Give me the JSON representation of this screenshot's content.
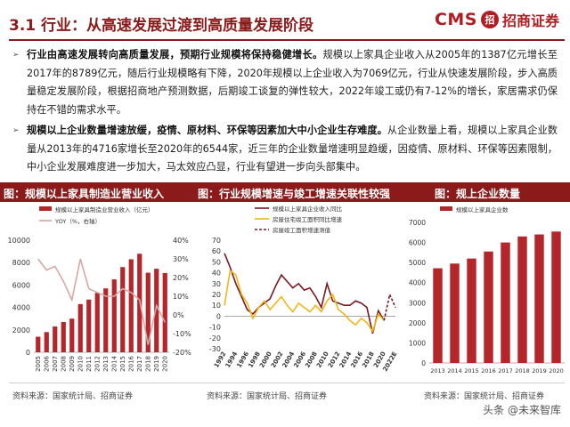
{
  "header": {
    "title": "3.1 行业：从高速发展过渡到高质量发展阶段",
    "logo_cms": "CMS",
    "logo_seal": "招",
    "logo_cn": "招商证券"
  },
  "bullets": [
    {
      "marker": "➢",
      "bold": "行业由高速发展转向高质量发展，预期行业规模将保持稳健增长。",
      "text": "规模以上家具企业收入从2005年的1387亿元增长至2017年的8789亿元，随后行业规模略有下降，2020年规模以上企业收入为7069亿元，行业从快速发展阶段，步入高质量稳定发展阶段，根据招商地产预测数据，后期竣工谈复的弹性较大，2022年竣工或仍有7-12%的增长，家居需求仍保持在不错的需求水平。"
    },
    {
      "marker": "➢",
      "bold": "规模以上企业数量增速放缓，疫情、原材料、环保等因素加大中小企业生存难度。",
      "text": "从企业数量上看，规模以上家具企业数量从2013年的4716家增长至2020年的6544家，近三年的企业数量增速明显趋缓，因疫情、原材料、环保等因素限制，中小企业发展难度进一步加大，马太效应凸显，行业有望进一步向头部集中。"
    }
  ],
  "figure_titles": [
    "图：规模以上家具制造业营业收入",
    "图：行业规模增速与竣工增速关联性较强",
    "图：规上企业数量"
  ],
  "sources": [
    "资料来源：国家统计局、招商证券",
    "资料来源：国家统计局、招商证券",
    "资料来源：国家统计局、招商证券"
  ],
  "watermark": "头条 @未来智库",
  "colors": {
    "brand": "#8b1a1a",
    "bar": "#b5262b",
    "line_dark": "#7a1820",
    "line_yellow": "#f2b619"
  },
  "chart_data": [
    {
      "type": "bar",
      "title": "图：规模以上家具制造业营业收入",
      "categories": [
        "2005",
        "2006",
        "2007",
        "2008",
        "2009",
        "2010",
        "2011",
        "2012",
        "2013",
        "2014",
        "2015",
        "2016",
        "2017",
        "2018",
        "2019",
        "2020"
      ],
      "series": [
        {
          "name": "规模以上家具制造业营业收入（亿元）",
          "type": "bar",
          "axis": "left",
          "values": [
            1387,
            1800,
            2300,
            2700,
            3000,
            4300,
            4700,
            5300,
            5700,
            6500,
            7600,
            8300,
            8789,
            7100,
            7450,
            7069
          ]
        },
        {
          "name": "YOY（%，右轴）",
          "type": "line",
          "axis": "right",
          "values": [
            30,
            24,
            26,
            18,
            8,
            30,
            14,
            12,
            10,
            10,
            14,
            12,
            8,
            -16,
            5,
            -4
          ]
        }
      ],
      "ylim_left": [
        0,
        10000
      ],
      "yticks_left": [
        0,
        2000,
        4000,
        6000,
        8000,
        10000
      ],
      "ylim_right": [
        -20,
        40
      ],
      "yticks_right": [
        "-20%",
        "-10%",
        "0%",
        "10%",
        "20%",
        "30%",
        "40%"
      ],
      "legend_position": "top-left"
    },
    {
      "type": "line",
      "title": "图：行业规模增速与竣工增速关联性较强",
      "x": [
        1992,
        1993,
        1994,
        1995,
        1996,
        1997,
        1998,
        1999,
        2000,
        2001,
        2002,
        2003,
        2004,
        2005,
        2006,
        2007,
        2008,
        2009,
        2010,
        2011,
        2012,
        2013,
        2014,
        2015,
        2016,
        2017,
        2018,
        2019,
        2020,
        2021,
        2022
      ],
      "xticks": [
        "1992",
        "1994",
        "1996",
        "1998",
        "2000",
        "2002",
        "2004",
        "2006",
        "2008",
        "2010",
        "2012",
        "2014",
        "2016",
        "2018",
        "2020",
        "2022E"
      ],
      "series": [
        {
          "name": "规模以上家具企业收入同比",
          "style": "solid",
          "color": "dark",
          "x": [
            1992,
            1993,
            1994,
            1995,
            1996,
            1997,
            1998,
            1999,
            2000,
            2001,
            2002,
            2003,
            2004,
            2005,
            2006,
            2007,
            2008,
            2009,
            2010,
            2011,
            2012,
            2013,
            2014,
            2015,
            2016,
            2017,
            2018,
            2019,
            2020
          ],
          "values": [
            58,
            45,
            30,
            18,
            6,
            2,
            8,
            12,
            16,
            28,
            38,
            32,
            26,
            30,
            24,
            26,
            18,
            8,
            30,
            14,
            12,
            10,
            10,
            14,
            12,
            8,
            -16,
            5,
            -4
          ]
        },
        {
          "name": "房屋住宅竣工面积同比增速",
          "style": "solid",
          "color": "yellow",
          "x": [
            1992,
            1993,
            1994,
            1995,
            1996,
            1997,
            1998,
            1999,
            2000,
            2001,
            2002,
            2003,
            2004,
            2005,
            2006,
            2007,
            2008,
            2009,
            2010,
            2011,
            2012,
            2013,
            2014,
            2015,
            2016,
            2017,
            2018,
            2019,
            2020
          ],
          "values": [
            10,
            42,
            38,
            20,
            12,
            -2,
            8,
            14,
            6,
            12,
            18,
            10,
            4,
            12,
            8,
            4,
            10,
            4,
            14,
            20,
            6,
            2,
            -4,
            -8,
            -2,
            -6,
            -14,
            2,
            -4
          ]
        },
        {
          "name": "房屋竣工面积增速测值",
          "style": "dashed",
          "color": "dark",
          "x": [
            2020,
            2021,
            2022
          ],
          "values": [
            -4,
            20,
            8
          ]
        }
      ],
      "ylim": [
        -30,
        70
      ],
      "yticks": [
        -30,
        -20,
        -10,
        0,
        10,
        20,
        30,
        40,
        50,
        60,
        70
      ],
      "legend_position": "top-right"
    },
    {
      "type": "bar",
      "title": "图：规上企业数量",
      "categories": [
        "2013",
        "2014",
        "2015",
        "2016",
        "2017",
        "2018",
        "2019",
        "2020"
      ],
      "series": [
        {
          "name": "规模以上家具企业数",
          "values": [
            4716,
            4950,
            5200,
            5550,
            6000,
            6300,
            6400,
            6544
          ]
        }
      ],
      "ylim": [
        0,
        7000
      ],
      "yticks": [
        0,
        1000,
        2000,
        3000,
        4000,
        5000,
        6000,
        7000
      ],
      "legend_position": "top-left"
    }
  ]
}
